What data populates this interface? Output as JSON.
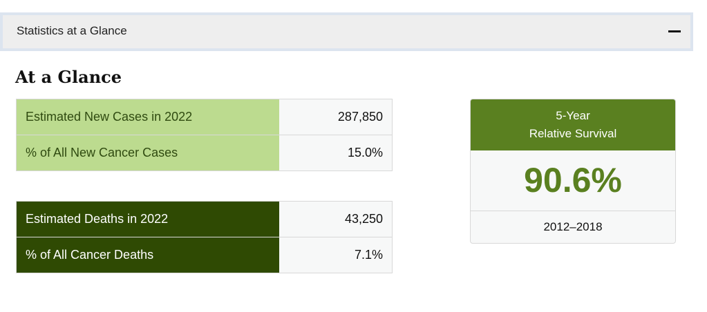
{
  "accordion": {
    "title": "Statistics at a Glance",
    "toggle_icon": "minus-icon"
  },
  "heading": "At a Glance",
  "new_cases": [
    {
      "label": "Estimated New Cases in 2022",
      "value": "287,850"
    },
    {
      "label": "% of All New Cancer Cases",
      "value": "15.0%"
    }
  ],
  "deaths": [
    {
      "label": "Estimated Deaths in 2022",
      "value": "43,250"
    },
    {
      "label": "% of All Cancer Deaths",
      "value": "7.1%"
    }
  ],
  "survival": {
    "title_line1": "5-Year",
    "title_line2": "Relative Survival",
    "value": "90.6%",
    "period": "2012–2018"
  },
  "colors": {
    "light_green": "#bcdb8f",
    "dark_green": "#2f4a03",
    "accent_green": "#5a8020"
  }
}
